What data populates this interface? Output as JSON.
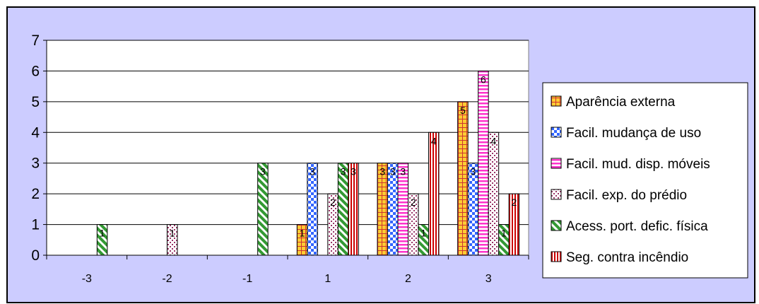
{
  "chart_data": {
    "type": "bar",
    "title": "",
    "xlabel": "",
    "ylabel": "",
    "categories": [
      "-3",
      "-2",
      "-1",
      "1",
      "2",
      "3"
    ],
    "ylim": [
      0,
      7
    ],
    "yticks": [
      "0",
      "1",
      "2",
      "3",
      "4",
      "5",
      "6",
      "7"
    ],
    "grid": true,
    "legend_position": "right",
    "data_labels": true,
    "series": [
      {
        "name": "Aparência externa",
        "values": [
          0,
          0,
          0,
          1,
          3,
          5
        ],
        "color": "#ffcc33",
        "pattern": "grid"
      },
      {
        "name": "Facil. mudança de uso",
        "values": [
          0,
          0,
          0,
          3,
          3,
          3
        ],
        "color": "#3366ff",
        "pattern": "checker"
      },
      {
        "name": "Facil. mud. disp. móveis",
        "values": [
          0,
          0,
          0,
          0,
          3,
          6
        ],
        "color": "#ff33cc",
        "pattern": "hstripe"
      },
      {
        "name": "Facil. exp. do prédio",
        "values": [
          0,
          1,
          0,
          2,
          2,
          4
        ],
        "color": "#993366",
        "pattern": "dots"
      },
      {
        "name": "Acess. port. defic. física",
        "values": [
          1,
          0,
          3,
          3,
          1,
          1
        ],
        "color": "#339933",
        "pattern": "diag"
      },
      {
        "name": "Seg. contra incêndio",
        "values": [
          0,
          0,
          0,
          3,
          4,
          2
        ],
        "color": "#cc0000",
        "pattern": "vstripe"
      }
    ],
    "colors": {
      "chart_area": "#ccccff",
      "plot_area": "#ffffff",
      "gridline": "#000000"
    }
  }
}
